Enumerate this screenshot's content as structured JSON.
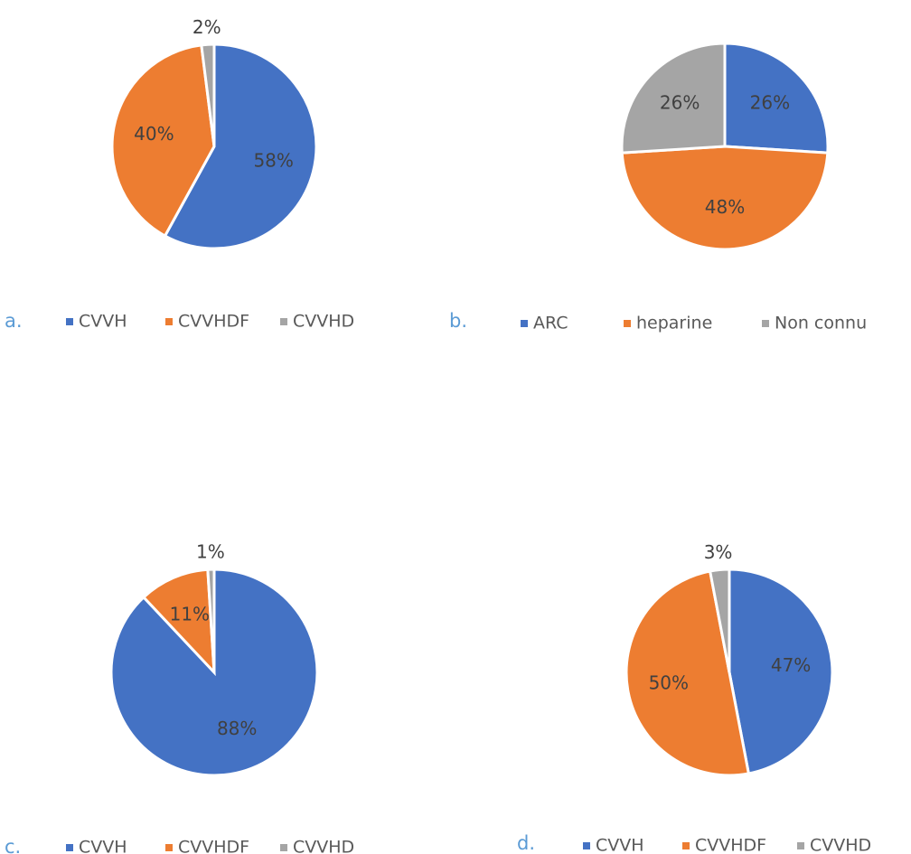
{
  "chart_data": [
    {
      "type": "pie",
      "label": "a.",
      "categories": [
        "CVVH",
        "CVVHDF",
        "CVVHD"
      ],
      "values": [
        58,
        40,
        2
      ],
      "value_labels": [
        "58%",
        "40%",
        "2%"
      ],
      "colors": [
        "#4472c4",
        "#ed7d31",
        "#a5a5a5"
      ]
    },
    {
      "type": "pie",
      "label": "b.",
      "categories": [
        "ARC",
        "heparine",
        "Non connu"
      ],
      "values": [
        26,
        48,
        26
      ],
      "value_labels": [
        "26%",
        "48%",
        "26%"
      ],
      "colors": [
        "#4472c4",
        "#ed7d31",
        "#a5a5a5"
      ]
    },
    {
      "type": "pie",
      "label": "c.",
      "categories": [
        "CVVH",
        "CVVHDF",
        "CVVHD"
      ],
      "values": [
        88,
        11,
        1
      ],
      "value_labels": [
        "88%",
        "11%",
        "1%"
      ],
      "colors": [
        "#4472c4",
        "#ed7d31",
        "#a5a5a5"
      ]
    },
    {
      "type": "pie",
      "label": "d.",
      "categories": [
        "CVVH",
        "CVVHDF",
        "CVVHD"
      ],
      "values": [
        47,
        50,
        3
      ],
      "value_labels": [
        "47%",
        "50%",
        "3%"
      ],
      "colors": [
        "#4472c4",
        "#ed7d31",
        "#a5a5a5"
      ]
    }
  ]
}
